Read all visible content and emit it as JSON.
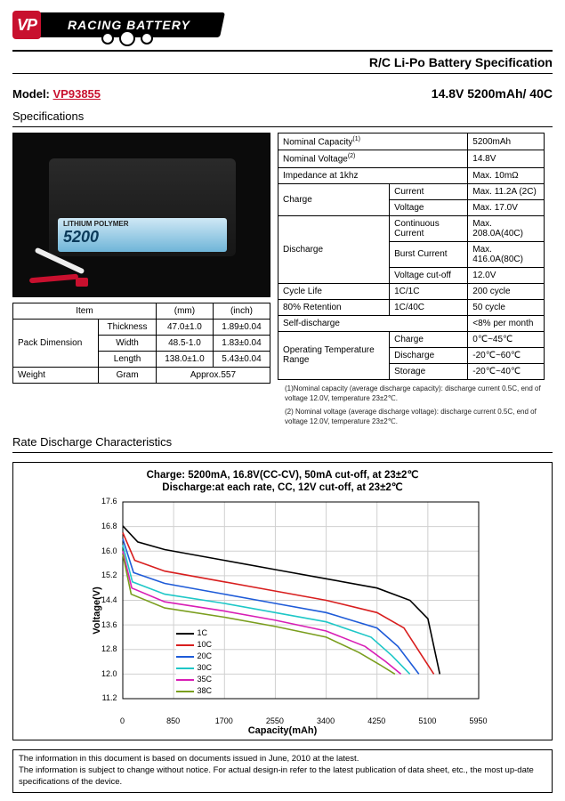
{
  "logo": {
    "vp": "VP",
    "banner": "RACING BATTERY"
  },
  "doc_title": "R/C Li-Po Battery Specification",
  "model": {
    "label": "Model:",
    "value": "VP93855",
    "spec": "14.8V 5200mAh/ 40C"
  },
  "section_spec": "Specifications",
  "product_label": {
    "big": "5200",
    "small": "LITHIUM POLYMER"
  },
  "dim_table": {
    "headers": [
      "Item",
      "(mm)",
      "(inch)"
    ],
    "rows": [
      [
        "Pack Dimension",
        "Thickness",
        "47.0±1.0",
        "1.89±0.04"
      ],
      [
        "",
        "Width",
        "48.5-1.0",
        "1.83±0.04"
      ],
      [
        "",
        "Length",
        "138.0±1.0",
        "5.43±0.04"
      ],
      [
        "Weight",
        "Gram",
        "Approx.557",
        ""
      ]
    ]
  },
  "spec_table": {
    "rows": [
      [
        "Nominal Capacity",
        "5200mAh",
        2,
        ""
      ],
      [
        "Nominal Voltage",
        "",
        2,
        "14.8V"
      ],
      [
        "Impedance at 1khz",
        "",
        2,
        "Max. 10mΩ"
      ],
      [
        "Charge",
        "Current",
        1,
        "Max. 11.2A (2C)"
      ],
      [
        "",
        "Voltage",
        1,
        "Max. 17.0V"
      ],
      [
        "Discharge",
        "Continuous Current",
        1,
        "Max. 208.0A(40C)"
      ],
      [
        "",
        "Burst Current",
        1,
        "Max. 416.0A(80C)"
      ],
      [
        "",
        "Voltage cut-off",
        1,
        "12.0V"
      ],
      [
        "Cycle Life",
        "1C/1C",
        1,
        "200 cycle"
      ],
      [
        "80% Retention",
        "1C/40C",
        1,
        "50 cycle"
      ],
      [
        "Self-discharge",
        "",
        2,
        "<8% per month"
      ],
      [
        "Operating Temperature Range",
        "Charge",
        1,
        "0℃~45℃"
      ],
      [
        "",
        "Discharge",
        1,
        "-20℃~60℃"
      ],
      [
        "",
        "Storage",
        1,
        "-20℃~40℃"
      ]
    ],
    "note1": "(1)Nominal capacity (average discharge capacity): discharge current 0.5C, end of voltage 12.0V, temperature 23±2℃.",
    "note2": "(2) Nominal voltage (average discharge voltage): discharge current 0.5C, end of voltage 12.0V, temperature 23±2℃."
  },
  "section_chart": "Rate Discharge Characteristics",
  "chart": {
    "title1": "Charge: 5200mA, 16.8V(CC-CV),  50mA cut-off, at 23±2℃",
    "title2": "Discharge:at each rate, CC, 12V cut-off, at 23±2℃",
    "ylabel": "Voltage(V)",
    "xlabel": "Capacity(mAh)",
    "ylim": [
      11.2,
      17.6
    ],
    "ytick_step": 0.8,
    "xlim": [
      0,
      5950
    ],
    "xtick_step": 850,
    "yticks": [
      "17.6",
      "16.8",
      "16.0",
      "15.2",
      "14.4",
      "13.6",
      "12.8",
      "12.0",
      "11.2"
    ],
    "xticks": [
      "0",
      "850",
      "1700",
      "2550",
      "3400",
      "4250",
      "5100",
      "5950"
    ],
    "grid_color": "#d0d0d0",
    "background_color": "#ffffff",
    "series": [
      {
        "name": "1C",
        "color": "#000000",
        "pts": [
          [
            0,
            16.82
          ],
          [
            250,
            16.3
          ],
          [
            700,
            16.05
          ],
          [
            1700,
            15.7
          ],
          [
            2550,
            15.4
          ],
          [
            3400,
            15.1
          ],
          [
            4250,
            14.8
          ],
          [
            4800,
            14.4
          ],
          [
            5100,
            13.8
          ],
          [
            5300,
            12.0
          ]
        ]
      },
      {
        "name": "10C",
        "color": "#d81e1e",
        "pts": [
          [
            0,
            16.6
          ],
          [
            200,
            15.7
          ],
          [
            700,
            15.35
          ],
          [
            1700,
            15.0
          ],
          [
            2550,
            14.7
          ],
          [
            3400,
            14.4
          ],
          [
            4250,
            14.0
          ],
          [
            4700,
            13.5
          ],
          [
            5000,
            12.6
          ],
          [
            5200,
            12.0
          ]
        ]
      },
      {
        "name": "20C",
        "color": "#1e5bd8",
        "pts": [
          [
            0,
            16.4
          ],
          [
            180,
            15.3
          ],
          [
            700,
            14.95
          ],
          [
            1700,
            14.6
          ],
          [
            2550,
            14.3
          ],
          [
            3400,
            14.0
          ],
          [
            4250,
            13.5
          ],
          [
            4600,
            12.9
          ],
          [
            4950,
            12.0
          ]
        ]
      },
      {
        "name": "30C",
        "color": "#1ec7c7",
        "pts": [
          [
            0,
            16.2
          ],
          [
            160,
            15.0
          ],
          [
            700,
            14.6
          ],
          [
            1700,
            14.3
          ],
          [
            2550,
            14.0
          ],
          [
            3400,
            13.7
          ],
          [
            4150,
            13.2
          ],
          [
            4500,
            12.6
          ],
          [
            4800,
            12.0
          ]
        ]
      },
      {
        "name": "35C",
        "color": "#d81eb5",
        "pts": [
          [
            0,
            16.0
          ],
          [
            150,
            14.8
          ],
          [
            700,
            14.35
          ],
          [
            1700,
            14.05
          ],
          [
            2550,
            13.75
          ],
          [
            3400,
            13.4
          ],
          [
            4050,
            12.9
          ],
          [
            4400,
            12.4
          ],
          [
            4650,
            12.0
          ]
        ]
      },
      {
        "name": "38C",
        "color": "#7a9e1e",
        "pts": [
          [
            0,
            15.9
          ],
          [
            140,
            14.6
          ],
          [
            700,
            14.15
          ],
          [
            1700,
            13.85
          ],
          [
            2550,
            13.55
          ],
          [
            3400,
            13.2
          ],
          [
            3950,
            12.7
          ],
          [
            4300,
            12.3
          ],
          [
            4550,
            12.0
          ]
        ]
      }
    ]
  },
  "disclaimer": {
    "l1": "The information in this document is based on documents issued in June, 2010 at the latest.",
    "l2": "The information is subject to change without notice. For actual design-in refer to the latest publication of data sheet, etc., the most up-date specifications of the device."
  }
}
